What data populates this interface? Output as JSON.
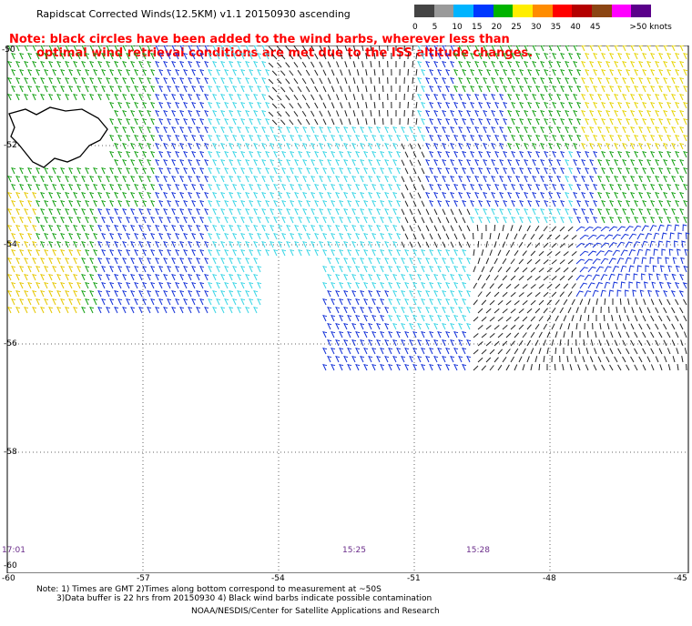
{
  "title": "Rapidscat Corrected Winds(12.5KM) v1.1 20150930 ascending",
  "note_line1": "Note: black circles have been added to the wind barbs, wherever less than",
  "note_line2": "optimal wind retrieval conditions are met due to the ISS altitude changes.",
  "colorbar": {
    "segments": [
      {
        "label": "0",
        "color": "#444444"
      },
      {
        "label": "5",
        "color": "#9a9a9a"
      },
      {
        "label": "10",
        "color": "#00b4ff"
      },
      {
        "label": "15",
        "color": "#0038ff"
      },
      {
        "label": "20",
        "color": "#00b400"
      },
      {
        "label": "25",
        "color": "#ffee00"
      },
      {
        "label": "30",
        "color": "#ff8c00"
      },
      {
        "label": "35",
        "color": "#ff0000"
      },
      {
        "label": "40",
        "color": "#b40000"
      },
      {
        "label": "45",
        "color": "#8b4513"
      },
      {
        "label": "",
        "color": "#ff00ff"
      },
      {
        "label": ">50 knots",
        "color": "#5a008a"
      }
    ]
  },
  "axes": {
    "lon_labels": [
      "-60",
      "-57",
      "-54",
      "-51",
      "-48",
      "-45"
    ],
    "lat_labels": [
      "-50",
      "-52",
      "-54",
      "-56",
      "-58",
      "-60"
    ]
  },
  "time_labels": [
    "17:01",
    "15:25",
    "15:28"
  ],
  "footer": {
    "line1": "Note: 1) Times are GMT 2)Times along bottom correspond to measurement at ~50S",
    "line2": "3)Data buffer is 22 hrs from 20150930 4) Black wind barbs indicate possible contamination",
    "line3": "NOAA/NESDIS/Center for Satellite Applications and Research"
  }
}
